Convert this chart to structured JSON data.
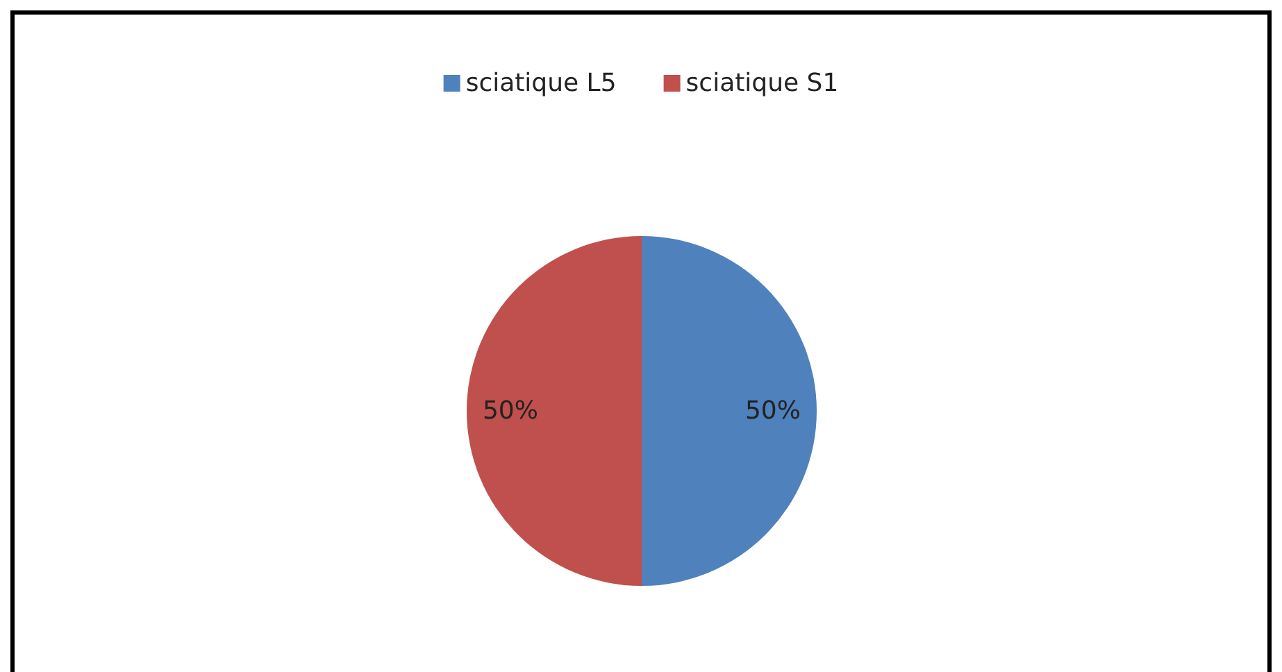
{
  "chart_data": {
    "type": "pie",
    "categories": [
      "sciatique L5",
      "sciatique S1"
    ],
    "values": [
      50,
      50
    ],
    "colors": [
      "#4f81bd",
      "#c0504d"
    ],
    "value_labels": [
      "50%",
      "50%"
    ],
    "legend": "top"
  }
}
